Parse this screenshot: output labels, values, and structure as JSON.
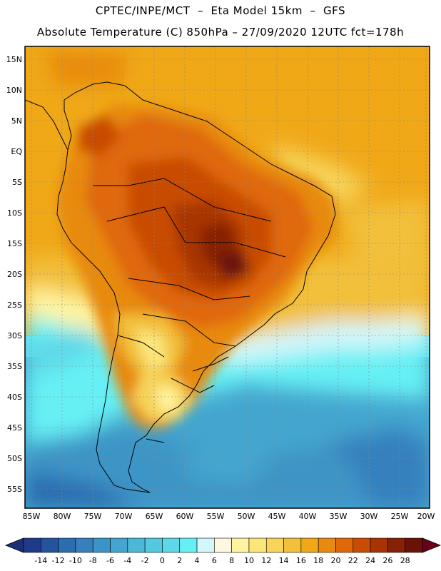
{
  "header": {
    "line1": "CPTEC/INPE/MCT  –  Eta Model 15km  –  GFS",
    "line2": "Absolute Temperature (C) 850hPa – 27/09/2020 12UTC fct=178h"
  },
  "map": {
    "variable": "Absolute Temperature (C) 850hPa",
    "lat_labels": [
      "15N",
      "10N",
      "5N",
      "EQ",
      "5S",
      "10S",
      "15S",
      "20S",
      "25S",
      "30S",
      "35S",
      "40S",
      "45S",
      "50S",
      "55S"
    ],
    "lon_labels": [
      "85W",
      "80W",
      "75W",
      "70W",
      "65W",
      "60W",
      "55W",
      "50W",
      "45W",
      "40W",
      "35W",
      "30W",
      "25W",
      "20W"
    ],
    "lat_range": [
      17,
      -58
    ],
    "lon_range": [
      -86,
      -20
    ]
  },
  "colorbar": {
    "labels": [
      "-14",
      "-12",
      "-10",
      "-8",
      "-6",
      "-4",
      "-2",
      "0",
      "2",
      "4",
      "6",
      "8",
      "10",
      "12",
      "14",
      "16",
      "18",
      "20",
      "22",
      "24",
      "26",
      "28"
    ],
    "colors": [
      "#1f3a8a",
      "#24549e",
      "#2c6cb0",
      "#3680bd",
      "#3c94c6",
      "#44a6cf",
      "#4bb8d8",
      "#53c8e0",
      "#5ed8e8",
      "#66f0f4",
      "#d3f6fa",
      "#fff8e1",
      "#fff5a0",
      "#fbe67a",
      "#f7d45a",
      "#f2c03a",
      "#f0a818",
      "#e88a10",
      "#e06808",
      "#c84c04",
      "#a83404",
      "#862206",
      "#6a1208"
    ],
    "under_color": "#1a2f78",
    "over_color": "#6a0018"
  }
}
